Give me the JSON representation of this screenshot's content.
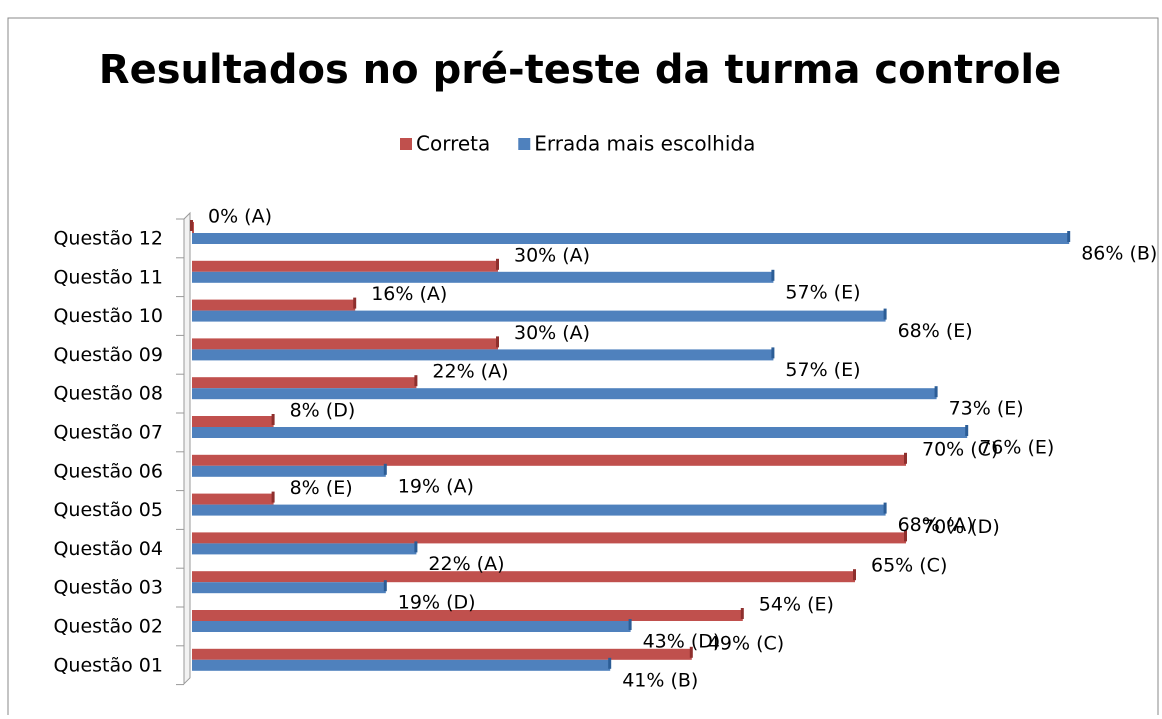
{
  "chart_data": {
    "type": "hbar",
    "title": "Resultados no pré-teste da turma controle",
    "categories": [
      "Questão 01",
      "Questão 02",
      "Questão 03",
      "Questão 04",
      "Questão 05",
      "Questão 06",
      "Questão 07",
      "Questão 08",
      "Questão 09",
      "Questão 10",
      "Questão 11",
      "Questão 12"
    ],
    "series": [
      {
        "name": "Correta",
        "color": "#c0504d",
        "values": [
          49,
          54,
          65,
          70,
          8,
          70,
          8,
          22,
          30,
          16,
          30,
          0
        ],
        "value_labels": [
          "49% (C)",
          "54% (E)",
          "65% (C)",
          "70% (D)",
          "8% (E)",
          "70% (C)",
          "8% (D)",
          "22% (A)",
          "30% (A)",
          "16% (A)",
          "30% (A)",
          "0% (A)"
        ]
      },
      {
        "name": "Errada mais escolhida",
        "color": "#4f81bd",
        "values": [
          41,
          43,
          19,
          22,
          68,
          19,
          76,
          73,
          57,
          68,
          57,
          86
        ],
        "value_labels": [
          "41% (B)",
          "43% (D)",
          "19% (D)",
          "22% (A)",
          "68% (A)",
          "19% (A)",
          "76% (E)",
          "73% (E)",
          "57% (E)",
          "68% (E)",
          "57% (E)",
          "86% (B)"
        ]
      }
    ],
    "xlim": [
      0,
      90
    ],
    "legend": "top"
  }
}
